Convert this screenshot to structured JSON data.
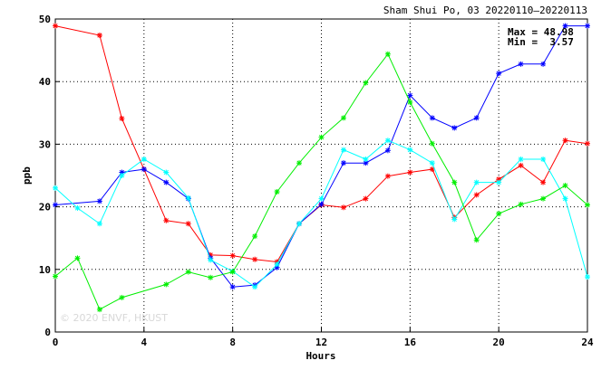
{
  "chart_data": {
    "type": "line",
    "title": "Sham Shui Po, 03 20220110–20220113",
    "xlabel": "Hours",
    "ylabel": "ppb",
    "xlim": [
      0,
      24
    ],
    "ylim": [
      0,
      50
    ],
    "xticks": [
      "0",
      "4",
      "8",
      "12",
      "16",
      "20",
      "24"
    ],
    "yticks": [
      "0",
      "10",
      "20",
      "30",
      "40",
      "50"
    ],
    "grid": true,
    "stats": {
      "max_label": "Max = 48.98",
      "min_label": "Min =  3.57"
    },
    "watermark": "© 2020  ENVF, HKUST",
    "x": [
      0,
      1,
      2,
      3,
      4,
      5,
      6,
      7,
      8,
      9,
      10,
      11,
      12,
      13,
      14,
      15,
      16,
      17,
      18,
      19,
      20,
      21,
      22,
      23,
      24
    ],
    "series": [
      {
        "color": "#ff0000",
        "values": [
          48.9,
          null,
          47.4,
          34.1,
          26.0,
          17.8,
          17.3,
          12.3,
          12.2,
          11.6,
          11.2,
          17.3,
          20.3,
          19.9,
          21.3,
          24.9,
          25.5,
          26.0,
          18.3,
          21.9,
          24.4,
          26.6,
          23.9,
          30.6,
          30.1
        ]
      },
      {
        "color": "#0000ff",
        "values": [
          20.3,
          null,
          20.9,
          25.5,
          26.0,
          23.9,
          21.3,
          11.8,
          7.2,
          7.5,
          10.3,
          17.3,
          20.4,
          27.0,
          27.0,
          29.0,
          37.8,
          34.2,
          32.6,
          34.2,
          41.3,
          42.8,
          42.8,
          48.9,
          48.9
        ]
      },
      {
        "color": "#00ffff",
        "values": [
          23.0,
          19.8,
          17.3,
          25.0,
          27.6,
          25.5,
          21.4,
          11.5,
          9.7,
          7.2,
          10.8,
          17.3,
          21.3,
          29.1,
          27.6,
          30.6,
          29.1,
          27.0,
          18.0,
          23.9,
          23.9,
          27.6,
          27.6,
          21.3,
          8.8
        ]
      },
      {
        "color": "#00ee00",
        "values": [
          8.9,
          11.8,
          3.6,
          5.5,
          null,
          7.6,
          9.6,
          8.7,
          9.6,
          15.3,
          22.4,
          27.0,
          31.1,
          34.2,
          39.8,
          44.4,
          36.7,
          30.1,
          23.9,
          14.7,
          18.9,
          20.4,
          21.3,
          23.4,
          20.3
        ]
      }
    ]
  }
}
